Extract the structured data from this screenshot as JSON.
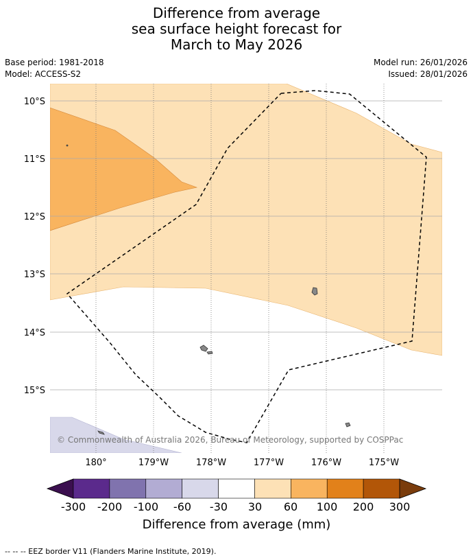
{
  "title": {
    "line1": "Difference from average",
    "line2": "sea surface height forecast for",
    "line3": "March to May 2026"
  },
  "meta": {
    "base_period": "Base period: 1981-2018",
    "model": "Model: ACCESS-S2",
    "model_run": "Model run: 26/01/2026",
    "issued": "Issued: 28/01/2026"
  },
  "map": {
    "lat_labels": [
      "10°S",
      "11°S",
      "12°S",
      "13°S",
      "14°S",
      "15°S"
    ],
    "lon_labels": [
      "180°",
      "179°W",
      "178°W",
      "177°W",
      "176°W",
      "175°W"
    ],
    "credit": "© Commonwealth of Australia 2026, Bureau of Meteorology, supported by COSPPac"
  },
  "colorbar": {
    "ticks": [
      "-300",
      "-200",
      "-100",
      "-60",
      "-30",
      "30",
      "60",
      "100",
      "200",
      "300"
    ],
    "colors": [
      "#3b0f4f",
      "#5b2a8c",
      "#8073ae",
      "#b2acd3",
      "#d8d8ea",
      "#ffffff",
      "#fde1b6",
      "#f9b45f",
      "#e2811a",
      "#b25608",
      "#7a3c0c"
    ],
    "label": "Difference from average (mm)"
  },
  "footer": "--  --  -- EEZ border V11 (Flanders Marine Institute, 2019)."
}
